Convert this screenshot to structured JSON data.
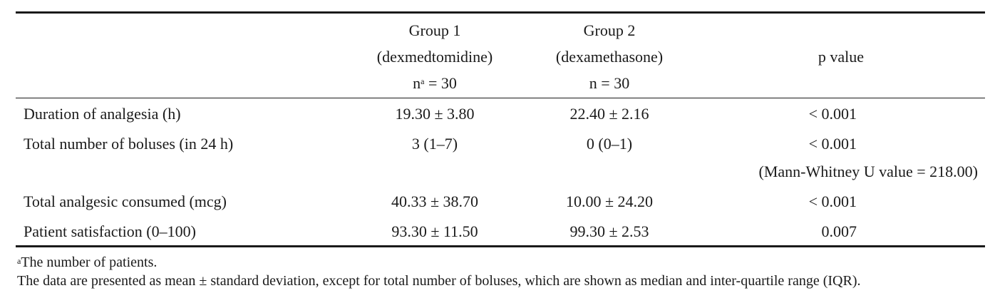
{
  "header": {
    "group1_line1": "Group 1",
    "group1_line2": "(dexmedtomidine)",
    "group1_n_prefix": "n",
    "group1_n_sup": "a",
    "group1_n_value": " = 30",
    "group2_line1": "Group 2",
    "group2_line2": "(dexamethasone)",
    "group2_n": "n = 30",
    "pvalue": "p value"
  },
  "rows": [
    {
      "label": "Duration of analgesia (h)",
      "g1": "19.30 ± 3.80",
      "g2": "22.40 ± 2.16",
      "p": "< 0.001"
    },
    {
      "label": "Total number of boluses (in 24 h)",
      "g1": "3 (1–7)",
      "g2": "0 (0–1)",
      "p": "< 0.001",
      "p_note": "(Mann-Whitney U value = 218.00)"
    },
    {
      "label": "Total analgesic consumed (mcg)",
      "g1": "40.33 ± 38.70",
      "g2": "10.00 ± 24.20",
      "p": "< 0.001"
    },
    {
      "label": "Patient satisfaction (0–100)",
      "g1": "93.30 ± 11.50",
      "g2": "99.30 ± 2.53",
      "p": "0.007"
    }
  ],
  "footnotes": {
    "fn1_sup": "a",
    "fn1_text": "The number of patients.",
    "fn2_text": "The data are presented as mean ± standard deviation, except for total number of boluses, which are shown as median and inter-quartile range (IQR)."
  }
}
